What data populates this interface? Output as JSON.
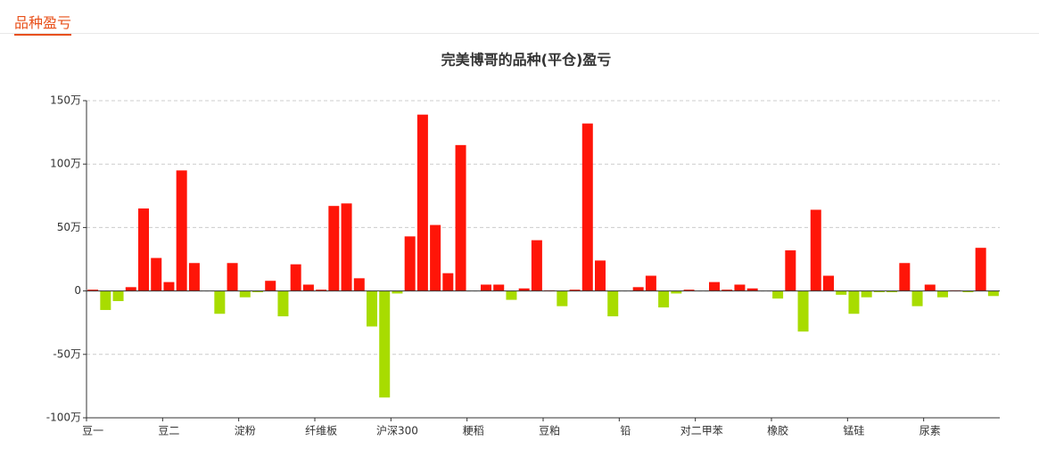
{
  "header": {
    "title": "品种盈亏"
  },
  "chart_data": {
    "type": "bar",
    "title": "完美博哥的品种(平仓)盈亏",
    "categories": [
      "豆一",
      null,
      null,
      null,
      null,
      null,
      "豆二",
      null,
      null,
      null,
      null,
      null,
      "淀粉",
      null,
      null,
      null,
      null,
      null,
      "纤维板",
      null,
      null,
      null,
      null,
      null,
      "沪深300",
      null,
      null,
      null,
      null,
      null,
      "粳稻",
      null,
      null,
      null,
      null,
      null,
      "豆粕",
      null,
      null,
      null,
      null,
      null,
      "铅",
      null,
      null,
      null,
      null,
      null,
      "对二甲苯",
      null,
      null,
      null,
      null,
      null,
      "橡胶",
      null,
      null,
      null,
      null,
      null,
      "锰硅",
      null,
      null,
      null,
      null,
      null,
      "尿素",
      null,
      null,
      null,
      null,
      null
    ],
    "values": [
      1,
      -15,
      -8,
      3,
      65,
      26,
      7,
      95,
      22,
      0,
      -18,
      22,
      -5,
      -1,
      8,
      -20,
      21,
      5,
      1,
      67,
      69,
      10,
      -28,
      -84,
      -2,
      43,
      139,
      52,
      14,
      115,
      0,
      5,
      5,
      -7,
      2,
      40,
      0.5,
      -12,
      1,
      132,
      24,
      -20,
      0,
      3,
      12,
      -13,
      -2,
      1,
      0,
      7,
      1,
      5,
      2,
      0,
      -6,
      32,
      -32,
      64,
      12,
      -3,
      -18,
      -5,
      -1,
      -1,
      22,
      -12,
      5,
      -5,
      0.5,
      -1,
      34,
      -4
    ],
    "positive_color": "#ff1508",
    "negative_color": "#a8dc00",
    "ylim": [
      -100,
      150
    ],
    "yticks": [
      {
        "value": -100,
        "label": "-100万"
      },
      {
        "value": -50,
        "label": "-50万"
      },
      0,
      {
        "value": 50,
        "label": "50万"
      },
      {
        "value": 100,
        "label": "100万"
      },
      {
        "value": 150,
        "label": "150万"
      }
    ],
    "grid": true
  }
}
